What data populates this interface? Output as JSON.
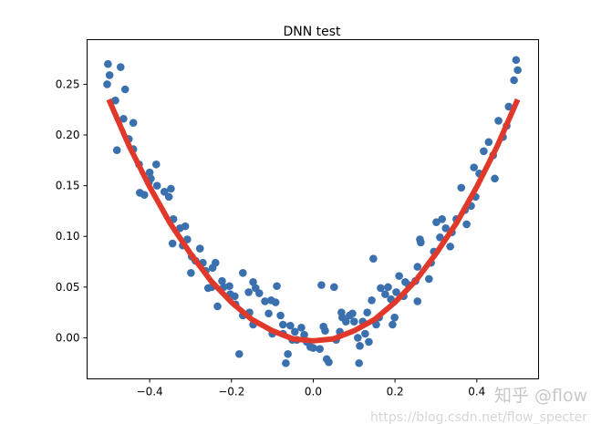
{
  "chart_data": {
    "type": "scatter",
    "title": "DNN test",
    "xlabel": "",
    "ylabel": "",
    "xlim": [
      -0.553,
      0.551
    ],
    "ylim": [
      -0.0405,
      0.294
    ],
    "xticks": [
      -0.4,
      -0.2,
      0.0,
      0.2,
      0.4
    ],
    "xtick_labels": [
      "−0.4",
      "−0.2",
      "0.0",
      "0.2",
      "0.4"
    ],
    "yticks": [
      0.0,
      0.05,
      0.1,
      0.15,
      0.2,
      0.25
    ],
    "ytick_labels": [
      "0.00",
      "0.05",
      "0.10",
      "0.15",
      "0.20",
      "0.25"
    ],
    "grid": false,
    "legend": "none",
    "colors": {
      "points": "#3a70ad",
      "line": "#e0392c"
    },
    "series": [
      {
        "type": "scatter",
        "points": [
          [
            -0.502,
            0.27
          ],
          [
            -0.498,
            0.259
          ],
          [
            -0.504,
            0.25
          ],
          [
            -0.471,
            0.267
          ],
          [
            -0.46,
            0.245
          ],
          [
            -0.484,
            0.234
          ],
          [
            -0.48,
            0.185
          ],
          [
            -0.464,
            0.216
          ],
          [
            -0.44,
            0.212
          ],
          [
            -0.451,
            0.196
          ],
          [
            -0.44,
            0.186
          ],
          [
            -0.426,
            0.171
          ],
          [
            -0.424,
            0.143
          ],
          [
            -0.413,
            0.141
          ],
          [
            -0.397,
            0.157
          ],
          [
            -0.384,
            0.171
          ],
          [
            -0.4,
            0.163
          ],
          [
            -0.402,
            0.153
          ],
          [
            -0.382,
            0.15
          ],
          [
            -0.364,
            0.144
          ],
          [
            -0.348,
            0.147
          ],
          [
            -0.353,
            0.139
          ],
          [
            -0.342,
            0.117
          ],
          [
            -0.344,
            0.093
          ],
          [
            -0.326,
            0.108
          ],
          [
            -0.313,
            0.11
          ],
          [
            -0.308,
            0.097
          ],
          [
            -0.319,
            0.091
          ],
          [
            -0.297,
            0.08
          ],
          [
            -0.299,
            0.064
          ],
          [
            -0.288,
            0.076
          ],
          [
            -0.277,
            0.088
          ],
          [
            -0.27,
            0.074
          ],
          [
            -0.263,
            0.066
          ],
          [
            -0.246,
            0.069
          ],
          [
            -0.239,
            0.074
          ],
          [
            -0.257,
            0.049
          ],
          [
            -0.248,
            0.05
          ],
          [
            -0.234,
            0.031
          ],
          [
            -0.223,
            0.056
          ],
          [
            -0.219,
            0.05
          ],
          [
            -0.205,
            0.051
          ],
          [
            -0.203,
            0.043
          ],
          [
            -0.192,
            0.041
          ],
          [
            -0.19,
            0.033
          ],
          [
            -0.181,
            -0.016
          ],
          [
            -0.172,
            0.064
          ],
          [
            -0.172,
            0.022
          ],
          [
            -0.156,
            0.025
          ],
          [
            -0.147,
            0.055
          ],
          [
            -0.147,
            0.013
          ],
          [
            -0.158,
            0.045
          ],
          [
            -0.141,
            0.049
          ],
          [
            -0.132,
            0.044
          ],
          [
            -0.118,
            0.036
          ],
          [
            -0.109,
            0.024
          ],
          [
            -0.1,
            0.004
          ],
          [
            -0.103,
            0.037
          ],
          [
            -0.092,
            0.035
          ],
          [
            -0.089,
            0.051
          ],
          [
            -0.08,
            0.022
          ],
          [
            -0.074,
            0.013
          ],
          [
            -0.074,
            0.004
          ],
          [
            -0.062,
            -0.016
          ],
          [
            -0.056,
            0.012
          ],
          [
            -0.051,
            -0.002
          ],
          [
            -0.067,
            -0.025
          ],
          [
            -0.045,
            0.006
          ],
          [
            -0.04,
            -0.002
          ],
          [
            -0.029,
            0.01
          ],
          [
            -0.022,
            0.003
          ],
          [
            -0.016,
            -0.004
          ],
          [
            -0.007,
            -0.009
          ],
          [
            0.0,
            -0.01
          ],
          [
            0.016,
            -0.011
          ],
          [
            0.02,
            0.052
          ],
          [
            0.025,
            0.011
          ],
          [
            0.029,
            0.007
          ],
          [
            0.033,
            -0.021
          ],
          [
            0.038,
            -0.024
          ],
          [
            0.051,
            0.05
          ],
          [
            0.056,
            -0.002
          ],
          [
            0.065,
            0.006
          ],
          [
            0.069,
            0.025
          ],
          [
            0.071,
            0.02
          ],
          [
            0.08,
            0.016
          ],
          [
            0.089,
            0.022
          ],
          [
            0.096,
            0.024
          ],
          [
            0.1,
            0.016
          ],
          [
            0.109,
            0.0
          ],
          [
            0.114,
            -0.008
          ],
          [
            0.112,
            -0.025
          ],
          [
            0.121,
            0.016
          ],
          [
            0.127,
            0.004
          ],
          [
            0.132,
            0.025
          ],
          [
            0.136,
            -0.004
          ],
          [
            0.143,
            0.037
          ],
          [
            0.147,
            0.078
          ],
          [
            0.154,
            0.013
          ],
          [
            0.161,
            0.02
          ],
          [
            0.165,
            0.049
          ],
          [
            0.176,
            0.043
          ],
          [
            0.183,
            0.05
          ],
          [
            0.19,
            0.038
          ],
          [
            0.194,
            0.013
          ],
          [
            0.199,
            0.02
          ],
          [
            0.203,
            0.045
          ],
          [
            0.21,
            0.061
          ],
          [
            0.221,
            0.041
          ],
          [
            0.225,
            0.055
          ],
          [
            0.234,
            0.052
          ],
          [
            0.25,
            0.056
          ],
          [
            0.255,
            0.036
          ],
          [
            0.261,
            0.097
          ],
          [
            0.263,
            0.094
          ],
          [
            0.255,
            0.07
          ],
          [
            0.283,
            0.058
          ],
          [
            0.288,
            0.074
          ],
          [
            0.295,
            0.085
          ],
          [
            0.301,
            0.114
          ],
          [
            0.31,
            0.099
          ],
          [
            0.315,
            0.117
          ],
          [
            0.324,
            0.108
          ],
          [
            0.335,
            0.09
          ],
          [
            0.339,
            0.104
          ],
          [
            0.35,
            0.117
          ],
          [
            0.362,
            0.148
          ],
          [
            0.371,
            0.126
          ],
          [
            0.375,
            0.112
          ],
          [
            0.386,
            0.13
          ],
          [
            0.393,
            0.168
          ],
          [
            0.397,
            0.139
          ],
          [
            0.406,
            0.162
          ],
          [
            0.417,
            0.184
          ],
          [
            0.429,
            0.193
          ],
          [
            0.44,
            0.18
          ],
          [
            0.444,
            0.157
          ],
          [
            0.453,
            0.214
          ],
          [
            0.464,
            0.198
          ],
          [
            0.473,
            0.209
          ],
          [
            0.478,
            0.228
          ],
          [
            0.491,
            0.254
          ],
          [
            0.496,
            0.274
          ],
          [
            0.5,
            0.264
          ]
        ]
      },
      {
        "type": "line",
        "x": [
          -0.5,
          -0.45,
          -0.4,
          -0.35,
          -0.3,
          -0.25,
          -0.2,
          -0.15,
          -0.1,
          -0.05,
          0.0,
          0.05,
          0.1,
          0.15,
          0.2,
          0.25,
          0.3,
          0.35,
          0.4,
          0.45,
          0.5
        ],
        "y": [
          0.235,
          0.189,
          0.149,
          0.113,
          0.083,
          0.056,
          0.035,
          0.018,
          0.007,
          -0.001,
          -0.003,
          -0.001,
          0.007,
          0.018,
          0.035,
          0.056,
          0.083,
          0.113,
          0.149,
          0.189,
          0.235
        ]
      }
    ]
  },
  "watermark": {
    "zhihu": "知乎 @flow",
    "csdn": "https://blog.csdn.net/flow_specter"
  }
}
